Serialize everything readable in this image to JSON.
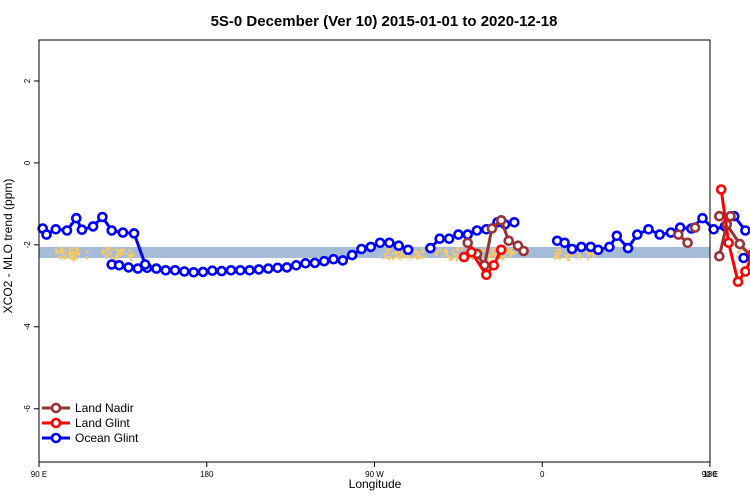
{
  "chart_data": {
    "type": "line",
    "title": "5S-0 December (Ver 10)   2015-01-01 to 2020-12-18",
    "xlabel": "Longitude",
    "ylabel": "XCO2 - MLO trend (ppm)",
    "xlim": [
      90,
      450
    ],
    "ylim": [
      -7.3,
      3
    ],
    "x_ticks": [
      {
        "value": 90,
        "label": "90 E"
      },
      {
        "value": 180,
        "label": "180"
      },
      {
        "value": 270,
        "label": "90 W"
      },
      {
        "value": 360,
        "label": "0"
      },
      {
        "value": 450,
        "label": "90 E"
      },
      {
        "value": 540,
        "label": "180"
      }
    ],
    "y_ticks": [
      {
        "value": 2,
        "label": "2"
      },
      {
        "value": 0,
        "label": "0"
      },
      {
        "value": -2,
        "label": "-2"
      },
      {
        "value": -4,
        "label": "-4"
      },
      {
        "value": -6,
        "label": "-6"
      }
    ],
    "band": {
      "ymin": -2.32,
      "ymax": -2.05,
      "color": "#a5bcd9"
    },
    "land_color": "#f5c86a",
    "land_segments": [
      [
        98,
        116
      ],
      [
        123,
        141
      ],
      [
        274,
        296
      ],
      [
        302,
        344
      ],
      [
        366,
        379
      ],
      [
        382,
        388
      ],
      [
        463,
        481
      ],
      [
        489,
        517
      ]
    ],
    "legend_position": "bottom-left",
    "series": [
      {
        "name": "Land Nadir",
        "color": "#993333",
        "x": [
          96,
          107,
          111,
          131,
          138,
          146
        ],
        "y": [
          -1.35,
          -1.75,
          -2,
          -1.35,
          -1.3,
          -1.3
        ]
      },
      {
        "name": "Land Glint",
        "color": "#ff0000",
        "x": [
          313,
          318,
          349,
          360,
          364,
          356,
          312
        ],
        "y": [
          -2.33,
          -2.18,
          -2.73,
          -2.5,
          -2.18,
          -2.05,
          -2.32
        ]
      },
      {
        "name": "Ocean Glint",
        "color": "#0000ff",
        "x": [
          129,
          133,
          138,
          143,
          148,
          153,
          158,
          163,
          168,
          173,
          178,
          183,
          188,
          193,
          198,
          203,
          208,
          213,
          218,
          223,
          228,
          233,
          238,
          243,
          248,
          253,
          258,
          263,
          268,
          273,
          278,
          283,
          288
        ],
        "y": [
          -2.48,
          -2.5,
          -2.55,
          -2.58,
          -2.56,
          -2.58,
          -2.62,
          -2.62,
          -2.65,
          -2.67,
          -2.66,
          -2.63,
          -2.64,
          -2.62,
          -2.62,
          -2.62,
          -2.6,
          -2.58,
          -2.56,
          -2.55,
          -2.5,
          -2.45,
          -2.44,
          -2.4,
          -2.35,
          -2.38,
          -2.25,
          -2.1,
          -2.05,
          -1.95,
          -1.95,
          -2.02,
          -2.12
        ]
      }
    ],
    "segments": [
      {
        "series": "Ocean Glint",
        "points": [
          [
            92,
            -1.6
          ],
          [
            94,
            -1.75
          ],
          [
            99,
            -1.62
          ],
          [
            105,
            -1.65
          ],
          [
            110,
            -1.35
          ],
          [
            113,
            -1.63
          ],
          [
            119,
            -1.55
          ],
          [
            124,
            -1.32
          ],
          [
            129,
            -1.65
          ],
          [
            135,
            -1.7
          ],
          [
            141,
            -1.72
          ],
          [
            147,
            -2.48
          ]
        ]
      },
      {
        "series": "Ocean Glint",
        "points": [
          [
            300,
            -2.08
          ],
          [
            305,
            -1.85
          ],
          [
            310,
            -1.85
          ],
          [
            315,
            -1.75
          ],
          [
            320,
            -1.75
          ],
          [
            325,
            -1.65
          ],
          [
            330,
            -1.62
          ],
          [
            336,
            -1.45
          ],
          [
            340,
            -1.5
          ],
          [
            345,
            -1.45
          ]
        ]
      },
      {
        "series": "Ocean Glint",
        "points": [
          [
            368,
            -1.9
          ],
          [
            372,
            -1.95
          ],
          [
            376,
            -2.1
          ],
          [
            381,
            -2.05
          ],
          [
            386,
            -2.05
          ],
          [
            390,
            -2.12
          ],
          [
            396,
            -2.05
          ],
          [
            400,
            -1.78
          ],
          [
            406,
            -2.08
          ],
          [
            411,
            -1.75
          ],
          [
            417,
            -1.62
          ],
          [
            423,
            -1.75
          ],
          [
            429,
            -1.7
          ],
          [
            434,
            -1.58
          ],
          [
            440,
            -1.6
          ],
          [
            446,
            -1.35
          ],
          [
            452,
            -1.62
          ],
          [
            458,
            -1.55
          ],
          [
            463,
            -1.3
          ],
          [
            469,
            -1.65
          ],
          [
            476,
            -1.68
          ],
          [
            482,
            -1.7
          ],
          [
            486,
            -2.48
          ],
          [
            492,
            -2.5
          ],
          [
            497,
            -2.6
          ],
          [
            503,
            -2.58
          ],
          [
            508,
            -2.6
          ],
          [
            513,
            -2.58
          ]
        ]
      },
      {
        "series": "Land Nadir",
        "points": [
          [
            320,
            -1.95
          ],
          [
            325,
            -2.22
          ],
          [
            329,
            -2.5
          ],
          [
            333,
            -1.6
          ],
          [
            338,
            -1.4
          ],
          [
            342,
            -1.9
          ],
          [
            347,
            -2.02
          ],
          [
            350,
            -2.15
          ]
        ]
      },
      {
        "series": "Land Nadir",
        "points": [
          [
            455,
            -2.28
          ],
          [
            459,
            -1.5
          ],
          [
            466,
            -1.98
          ],
          [
            473,
            -2.33
          ],
          [
            476,
            -2.38
          ],
          [
            478,
            -1.92
          ]
        ]
      },
      {
        "series": "Land Nadir",
        "points": [
          [
            433,
            -1.75
          ],
          [
            438,
            -1.95
          ]
        ]
      },
      {
        "series": "Land Nadir",
        "points": [
          [
            442,
            -1.58
          ]
        ]
      },
      {
        "series": "Land Nadir",
        "points": [
          [
            455,
            -1.3
          ],
          [
            461,
            -1.3
          ]
        ]
      },
      {
        "series": "Land Glint",
        "points": [
          [
            318,
            -2.3
          ],
          [
            322,
            -2.18
          ],
          [
            330,
            -2.73
          ],
          [
            334,
            -2.5
          ],
          [
            338,
            -2.12
          ]
        ]
      },
      {
        "series": "Land Glint",
        "points": [
          [
            456,
            -0.65
          ],
          [
            460,
            -1.95
          ],
          [
            465,
            -2.9
          ],
          [
            469,
            -2.65
          ],
          [
            473,
            -2.22
          ],
          [
            477,
            -1.88
          ]
        ]
      },
      {
        "series": "Ocean Glint",
        "points": [
          [
            468,
            -2.32
          ]
        ]
      }
    ]
  }
}
